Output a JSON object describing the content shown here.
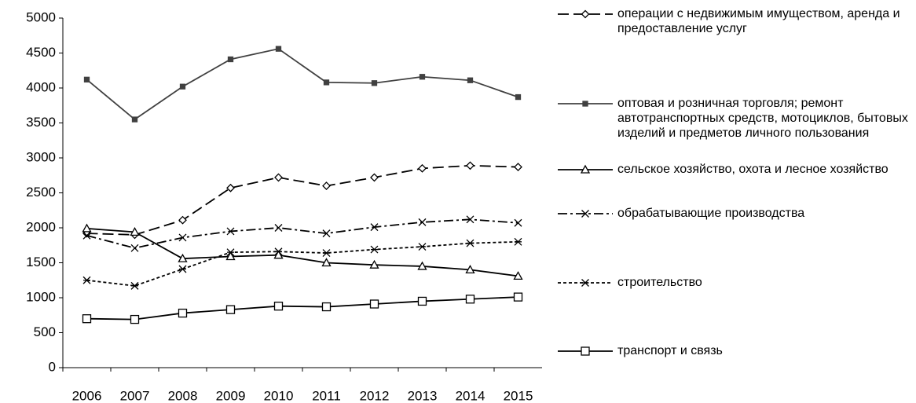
{
  "chart_data": {
    "type": "line",
    "categories": [
      "2006",
      "2007",
      "2008",
      "2009",
      "2010",
      "2011",
      "2012",
      "2013",
      "2014",
      "2015"
    ],
    "ylim": [
      0,
      5000
    ],
    "yticks": [
      0,
      500,
      1000,
      1500,
      2000,
      2500,
      3000,
      3500,
      4000,
      4500,
      5000
    ],
    "series": [
      {
        "name": "операции с недвижимым имуществом, аренда и предоставление услуг",
        "color": "#000000",
        "dash": "dashed",
        "marker": "diamond",
        "values": [
          1920,
          1900,
          2110,
          2570,
          2720,
          2600,
          2720,
          2850,
          2890,
          2870
        ]
      },
      {
        "name": "оптовая и розничная торговля; ремонт автотранспортных средств, мотоциклов, бытовых изделий и предметов личного пользования",
        "color": "#404040",
        "dash": "solid",
        "marker": "square-filled",
        "values": [
          4120,
          3550,
          4020,
          4410,
          4560,
          4080,
          4070,
          4160,
          4110,
          3870
        ]
      },
      {
        "name": "сельское хозяйство, охота и лесное хозяйство",
        "color": "#000000",
        "dash": "solid",
        "marker": "triangle",
        "values": [
          1990,
          1940,
          1560,
          1590,
          1610,
          1500,
          1470,
          1450,
          1400,
          1310
        ]
      },
      {
        "name": "обрабатывающие производства",
        "color": "#000000",
        "dash": "dashdot",
        "marker": "x",
        "values": [
          1890,
          1710,
          1860,
          1950,
          2000,
          1920,
          2010,
          2080,
          2120,
          2070
        ]
      },
      {
        "name": "строительство",
        "color": "#000000",
        "dash": "dotted",
        "marker": "asterisk",
        "values": [
          1250,
          1170,
          1410,
          1650,
          1660,
          1640,
          1690,
          1730,
          1780,
          1800
        ]
      },
      {
        "name": "транспорт и связь",
        "color": "#000000",
        "dash": "solid",
        "marker": "square",
        "values": [
          700,
          690,
          780,
          830,
          880,
          870,
          910,
          950,
          980,
          1010
        ]
      }
    ]
  }
}
